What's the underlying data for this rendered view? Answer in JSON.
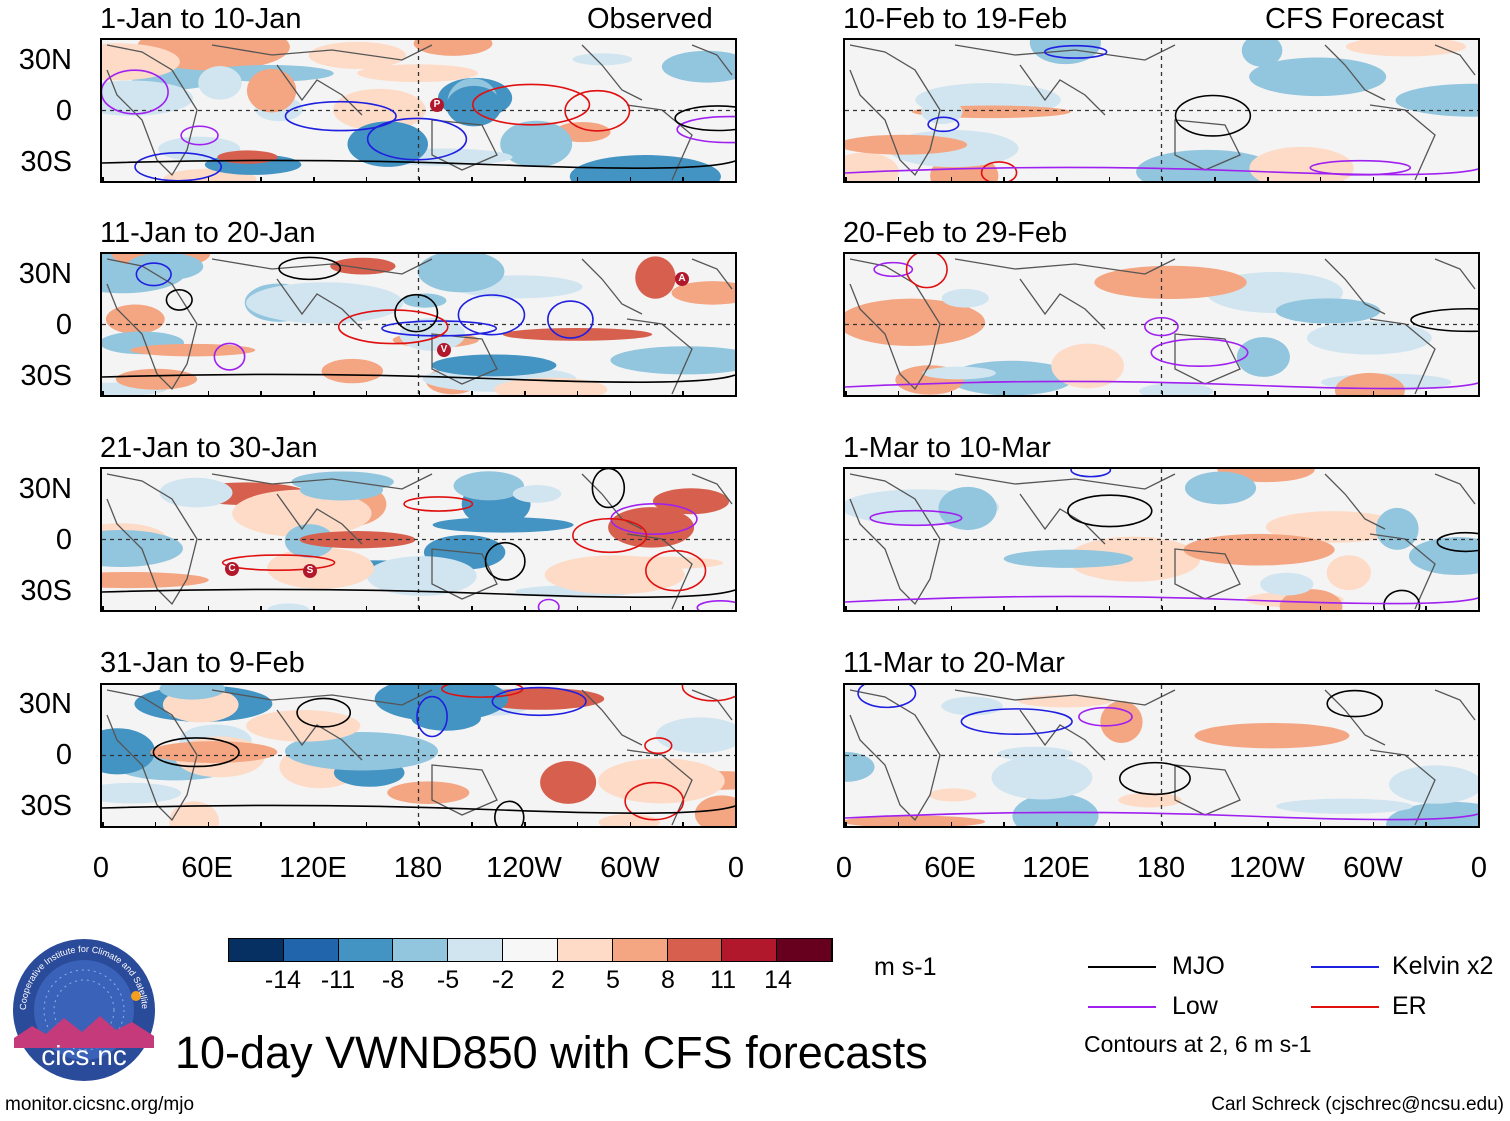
{
  "header": {
    "observed_label": "Observed",
    "forecast_label": "CFS Forecast"
  },
  "panels_left": [
    {
      "title": "1-Jan to 10-Jan"
    },
    {
      "title": "11-Jan to 20-Jan"
    },
    {
      "title": "21-Jan to 30-Jan"
    },
    {
      "title": "31-Jan to 9-Feb"
    }
  ],
  "panels_right": [
    {
      "title": "10-Feb to 19-Feb"
    },
    {
      "title": "20-Feb to 29-Feb"
    },
    {
      "title": "1-Mar to 10-Mar"
    },
    {
      "title": "11-Mar to 20-Mar"
    }
  ],
  "lat_labels": [
    "30N",
    "0",
    "30S"
  ],
  "lon_labels": [
    "0",
    "60E",
    "120E",
    "180",
    "120W",
    "60W",
    "0"
  ],
  "storm_markers": [
    {
      "panel": "left-0",
      "label": "P"
    },
    {
      "panel": "left-1",
      "label": "A"
    },
    {
      "panel": "left-1",
      "label": "V"
    },
    {
      "panel": "left-2",
      "label": "C"
    },
    {
      "panel": "left-2",
      "label": "S"
    }
  ],
  "colorbar": {
    "colors": [
      "#053061",
      "#2166ac",
      "#4393c3",
      "#92c5de",
      "#d1e5f0",
      "#f7f7f7",
      "#fddbc7",
      "#f4a582",
      "#d6604d",
      "#b2182b",
      "#67001f"
    ],
    "labels": [
      "-14",
      "-11",
      "-8",
      "-5",
      "-2",
      "2",
      "5",
      "8",
      "11",
      "14"
    ],
    "units": "m s-1"
  },
  "legend": {
    "items": [
      {
        "label": "MJO",
        "color": "#000000"
      },
      {
        "label": "Kelvin x2",
        "color": "#1f1fe0"
      },
      {
        "label": "Low",
        "color": "#a020f0"
      },
      {
        "label": "ER",
        "color": "#e01010"
      }
    ],
    "note": "Contours at 2, 6 m s-1"
  },
  "logo": {
    "text": "cics.nc",
    "ring_text": "Cooperative Institute for Climate and Satellites"
  },
  "main_title": "10-day VWND850 with CFS forecasts",
  "footer": {
    "left": "monitor.cicsnc.org/mjo",
    "right": "Carl Schreck (cjschrec@ncsu.edu)"
  }
}
